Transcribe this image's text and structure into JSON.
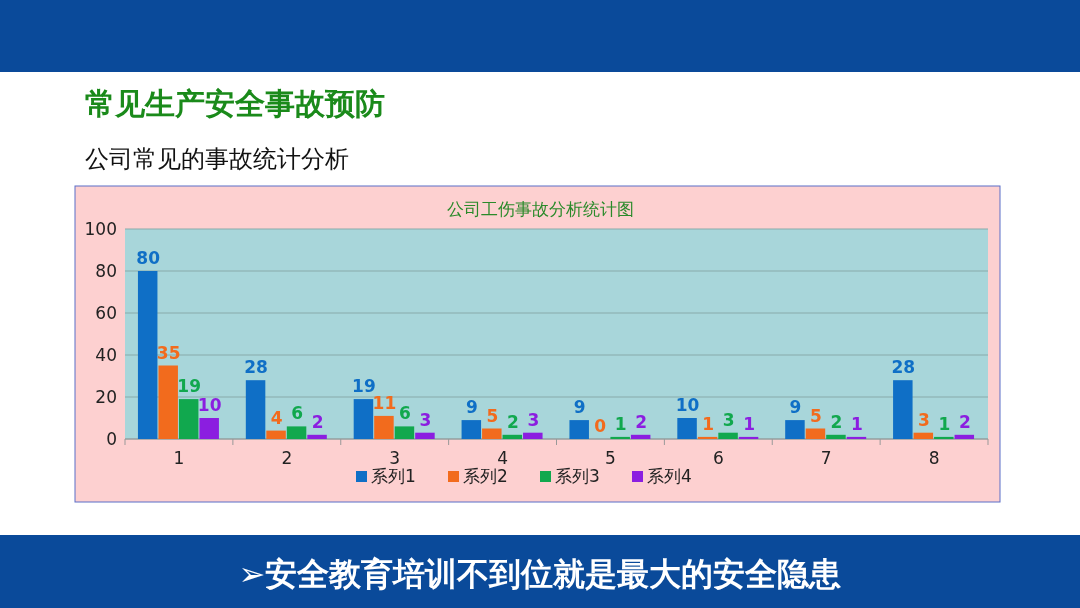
{
  "chart_data": {
    "type": "bar",
    "title": "常见生产安全事故预防",
    "subtitle": "公司常见的事故统计分析",
    "annotations": [
      "公司工伤事故分析统计图",
      "➢安全教育培训不到位就是最大的安全隐患"
    ],
    "categories": [
      "1",
      "2",
      "3",
      "4",
      "5",
      "6",
      "7",
      "8"
    ],
    "series": [
      {
        "name": "系列1",
        "color": "#0f6fc6",
        "values": [
          80,
          28,
          19,
          9,
          9,
          10,
          9,
          28
        ]
      },
      {
        "name": "系列2",
        "color": "#f26b1d",
        "values": [
          35,
          4,
          11,
          5,
          0,
          1,
          5,
          3
        ]
      },
      {
        "name": "系列3",
        "color": "#11a84e",
        "values": [
          19,
          6,
          6,
          2,
          1,
          3,
          2,
          1
        ]
      },
      {
        "name": "系列4",
        "color": "#8b1ee0",
        "values": [
          10,
          2,
          3,
          3,
          2,
          1,
          1,
          2
        ]
      }
    ],
    "ylim": [
      0,
      100
    ],
    "yticks": [
      0,
      20,
      40,
      60,
      80,
      100
    ],
    "grid": "y",
    "legend": "bottom",
    "data_labels": true
  }
}
